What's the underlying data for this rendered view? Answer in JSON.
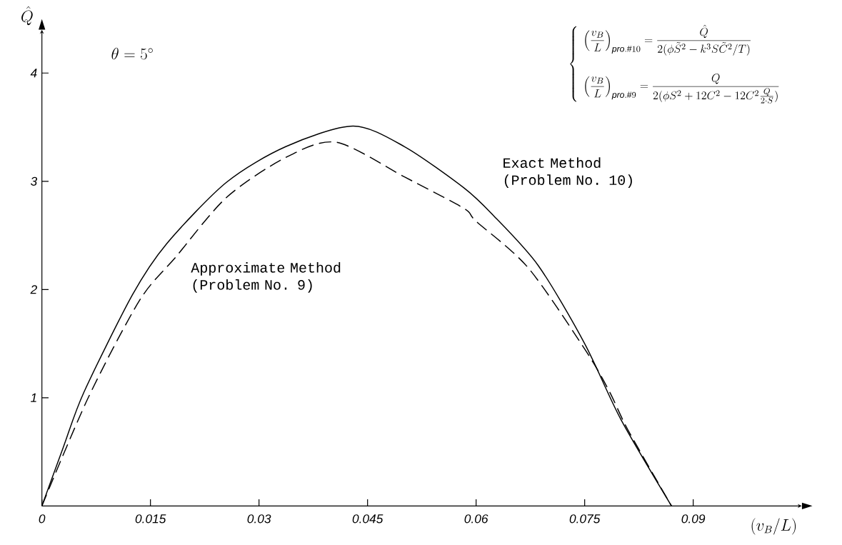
{
  "chart_data": {
    "type": "line",
    "xlabel": "(v_B/L)",
    "ylabel": "\\hat{Q}",
    "annotations": [
      "\\theta = 5^{\\circ}",
      "\\left\\{\\begin{array}{l}\\left(\\dfrac{v_B}{L}\\right)_{\\mathit{pro.}\\#10}=\\dfrac{\\hat{Q}}{2(\\phi\\tilde{S}^{2}-k^{3}S\\tilde{C}^{2}/T)}\\\\[4ex]\\left(\\dfrac{v_B}{L}\\right)_{\\mathit{pro.}\\#9}=\\dfrac{Q}{2(\\phi S^{2}+12C^{2}-12C^{2}\\frac{Q}{2\\cdot S})}\\end{array}\\right."
    ],
    "series": [
      {
        "name": "Exact Method (Problem No. 10)",
        "color": "#000000",
        "line_style": "solid",
        "x": [
          0,
          0.003,
          0.0058,
          0.0125,
          0.0172,
          0.0255,
          0.0337,
          0.043,
          0.0501,
          0.0583,
          0.0623,
          0.0686,
          0.075,
          0.08,
          0.087
        ],
        "values": [
          0,
          0.55,
          1.05,
          1.95,
          2.42,
          2.99,
          3.32,
          3.51,
          3.32,
          2.94,
          2.69,
          2.22,
          1.5,
          0.8,
          0
        ]
      },
      {
        "name": "Approximate Method (Problem No. 9)",
        "color": "#000000",
        "line_style": "dashed",
        "x": [
          0,
          0.0064,
          0.0135,
          0.0185,
          0.0255,
          0.0337,
          0.0407,
          0.0501,
          0.0583,
          0.06,
          0.0672,
          0.0751,
          0.0784,
          0.081,
          0.087
        ],
        "values": [
          0,
          1.0,
          1.9,
          2.3,
          2.85,
          3.22,
          3.36,
          3.04,
          2.75,
          2.63,
          2.2,
          1.44,
          1.06,
          0.7,
          0
        ]
      }
    ],
    "xlim": [
      0,
      0.105
    ],
    "ylim": [
      0,
      4.4
    ],
    "xticks": [
      0,
      0.015,
      0.03,
      0.045,
      0.06,
      0.075,
      0.09
    ],
    "yticks": [
      1,
      2,
      3,
      4
    ],
    "grid": false,
    "legend": false,
    "marker": "none"
  }
}
